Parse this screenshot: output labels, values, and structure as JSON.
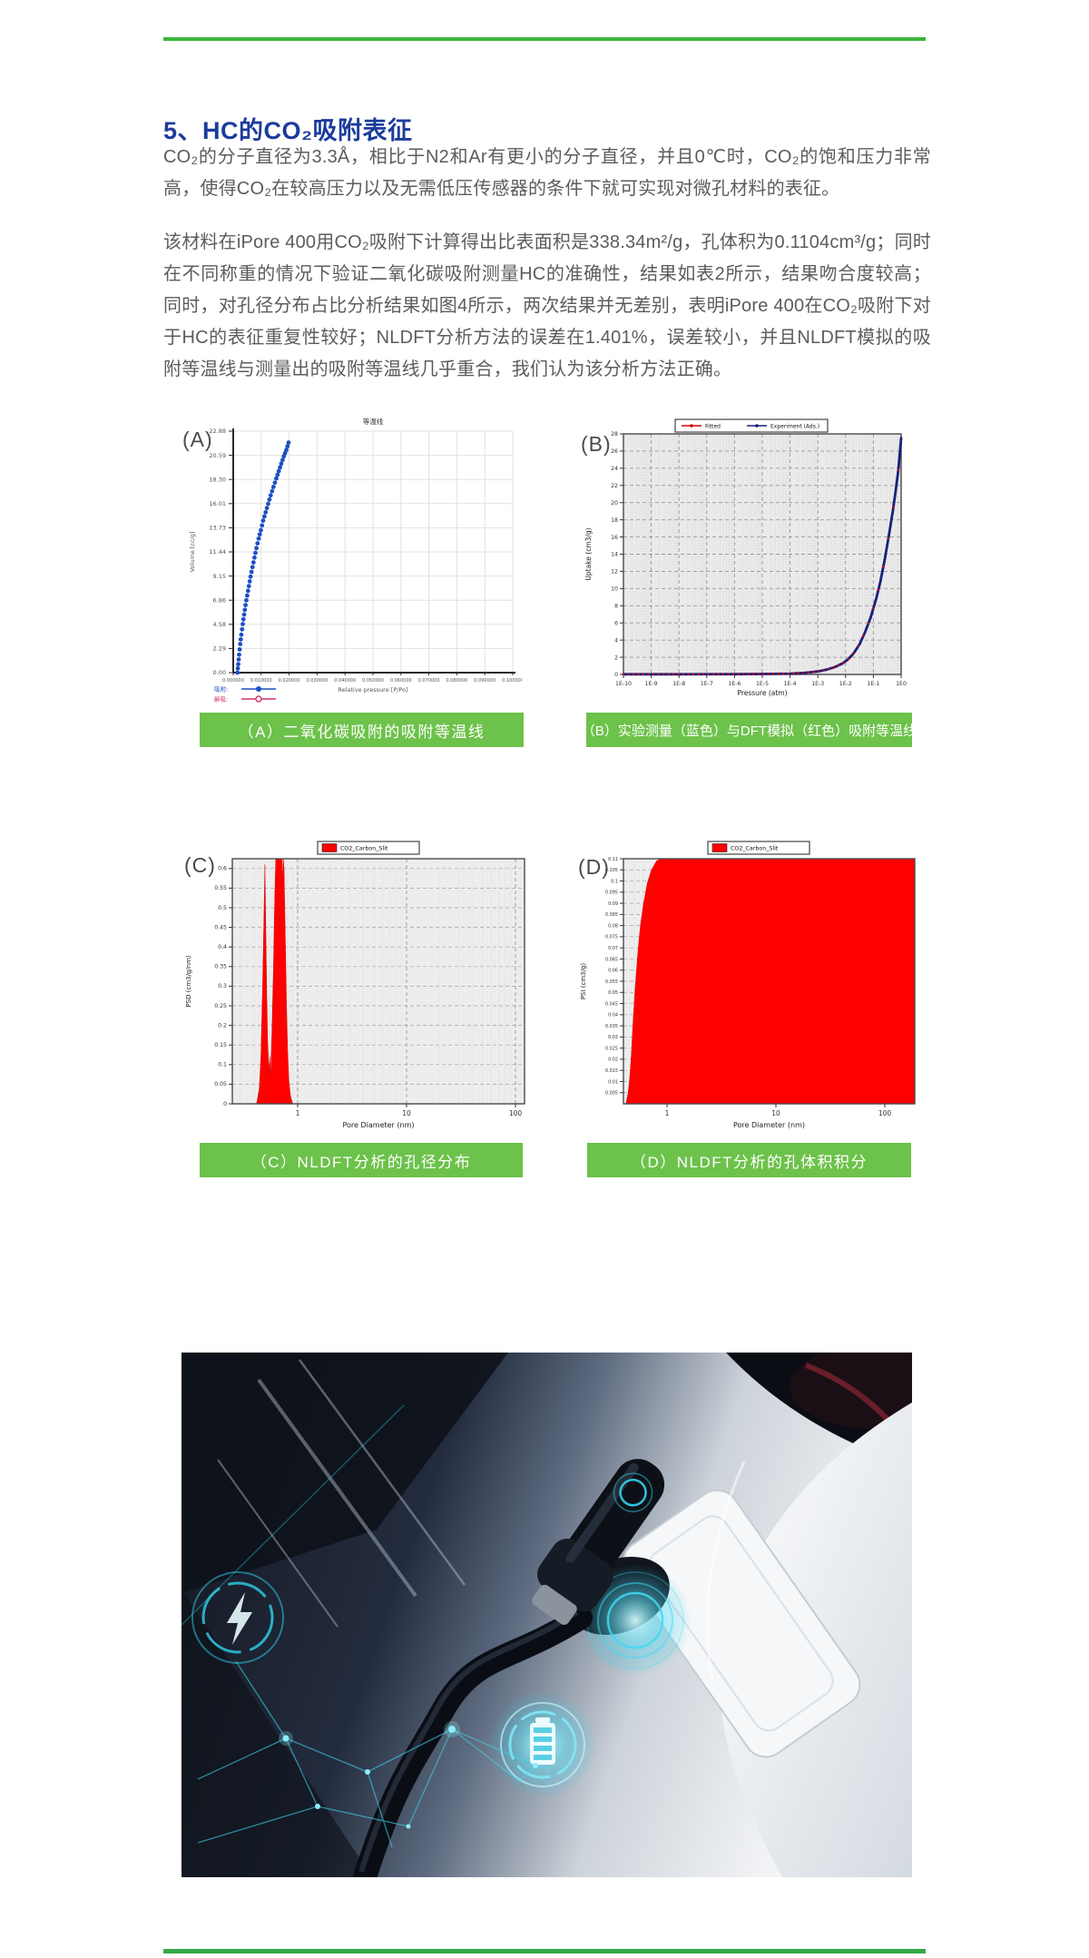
{
  "page": {
    "title_heading": "5、HC的CO₂吸附表征",
    "paragraph_1": "CO₂的分子直径为3.3Å，相比于N2和Ar有更小的分子直径，并且0℃时，CO₂的饱和压力非常高，使得CO₂在较高压力以及无需低压传感器的条件下就可实现对微孔材料的表征。",
    "paragraph_2": "该材料在iPore 400用CO₂吸附下计算得出比表面积是338.34m²/g，孔体积为0.1104cm³/g；同时在不同称重的情况下验证二氧化碳吸附测量HC的准确性，结果如表2所示，结果吻合度较高；同时，对孔径分布占比分析结果如图4所示，两次结果并无差别，表明iPore 400在CO₂吸附下对于HC的表征重复性较好；NLDFT分析方法的误差在1.401%，误差较小，并且NLDFT模拟的吸附等温线与测量出的吸附等温线几乎重合，我们认为该分析方法正确。",
    "colors": {
      "rule_green": "#3cb53c",
      "caption_green": "#6cc24a",
      "heading_blue": "#1c3c9c",
      "body_text": "#5c5c5c"
    }
  },
  "figures": {
    "a_label": "(A)",
    "b_label": "(B)",
    "c_label": "(C)",
    "d_label": "(D)",
    "caption_a": "（A）二氧化碳吸附的吸附等温线",
    "caption_b": "（B）实验测量（蓝色）与DFT模拟（红色）吸附等温线",
    "caption_c": "（C）NLDFT分析的孔径分布",
    "caption_d": "（D）NLDFT分析的孔体积积分"
  },
  "chart_data": [
    {
      "id": "A",
      "type": "scatter",
      "title": "等温线",
      "xlabel": "Relative pressure [P/Po]",
      "ylabel": "Volume [cc/g]",
      "xlim": [
        0,
        0.1
      ],
      "xticks": [
        "0.000000",
        "0.010000",
        "0.020000",
        "0.030000",
        "0.040000",
        "0.050000",
        "0.060000",
        "0.070000",
        "0.080000",
        "0.090000",
        "0.100000"
      ],
      "yticks": [
        "22.88",
        "20.59",
        "18.30",
        "16.01",
        "13.73",
        "11.44",
        "9.15",
        "6.86",
        "4.58",
        "2.29",
        "0.00"
      ],
      "legend": [
        {
          "label": "吸附:",
          "color": "#1d4fc4",
          "marker": "filled-circle"
        },
        {
          "label": "解吸:",
          "color": "#d0346a",
          "marker": "open-circle"
        }
      ],
      "series": [
        {
          "name": "吸附",
          "color": "#1d4fc4",
          "points": [
            [
              0.0015,
              0
            ],
            [
              0.0018,
              0.8
            ],
            [
              0.0021,
              1.7
            ],
            [
              0.0025,
              2.7
            ],
            [
              0.0029,
              3.6
            ],
            [
              0.0034,
              4.6
            ],
            [
              0.0039,
              5.5
            ],
            [
              0.0044,
              6.4
            ],
            [
              0.005,
              7.3
            ],
            [
              0.0056,
              8.2
            ],
            [
              0.0062,
              9.1
            ],
            [
              0.0069,
              10
            ],
            [
              0.0076,
              10.9
            ],
            [
              0.0083,
              11.8
            ],
            [
              0.0091,
              12.7
            ],
            [
              0.0099,
              13.5
            ],
            [
              0.0107,
              14.4
            ],
            [
              0.0116,
              15.2
            ],
            [
              0.0125,
              16
            ],
            [
              0.0134,
              16.8
            ],
            [
              0.0144,
              17.6
            ],
            [
              0.0154,
              18.4
            ],
            [
              0.0163,
              19.1
            ],
            [
              0.0172,
              19.8
            ],
            [
              0.0181,
              20.5
            ],
            [
              0.019,
              21.1
            ],
            [
              0.0198,
              21.8
            ]
          ]
        }
      ]
    },
    {
      "id": "B",
      "type": "line",
      "xscale": "log",
      "xlabel": "Pressure (atm)",
      "ylabel": "Uptake (cm3/g)",
      "xticks": [
        "1E-10",
        "1E-9",
        "1E-8",
        "1E-7",
        "1E-6",
        "1E-5",
        "1E-4",
        "1E-3",
        "1E-2",
        "1E-1",
        "1E0"
      ],
      "ylim": [
        0,
        28
      ],
      "ytick_step": 2,
      "legend": [
        {
          "label": "Fitted",
          "color": "#d40000"
        },
        {
          "label": "Experiment (Ads.)",
          "color": "#15207e"
        }
      ],
      "series": [
        {
          "name": "Experiment (Ads.)",
          "color": "#15207e",
          "points_logx": [
            [
              -10,
              0.02
            ],
            [
              -8,
              0.02
            ],
            [
              -6,
              0.03
            ],
            [
              -5,
              0.05
            ],
            [
              -4,
              0.1
            ],
            [
              -3.5,
              0.18
            ],
            [
              -3,
              0.35
            ],
            [
              -2.7,
              0.55
            ],
            [
              -2.4,
              0.85
            ],
            [
              -2.1,
              1.3
            ],
            [
              -1.9,
              1.8
            ],
            [
              -1.7,
              2.5
            ],
            [
              -1.5,
              3.5
            ],
            [
              -1.3,
              4.9
            ],
            [
              -1.1,
              6.6
            ],
            [
              -0.9,
              8.8
            ],
            [
              -0.75,
              10.8
            ],
            [
              -0.6,
              13.2
            ],
            [
              -0.45,
              16
            ],
            [
              -0.3,
              19
            ],
            [
              -0.2,
              21.3
            ],
            [
              -0.1,
              23.8
            ],
            [
              0,
              27.5
            ]
          ]
        },
        {
          "name": "Fitted",
          "color": "#d40000",
          "style": "dots-on-curve"
        }
      ]
    },
    {
      "id": "C",
      "type": "area",
      "xscale": "log",
      "xlabel": "Pore Diameter (nm)",
      "ylabel": "PSD (cm3/g/nm)",
      "xticks": [
        "1",
        "10",
        "100"
      ],
      "ylim": [
        0,
        0.625
      ],
      "yticks": [
        "0.6",
        "0.55",
        "0.5",
        "0.45",
        "0.4",
        "0.35",
        "0.3",
        "0.25",
        "0.2",
        "0.15",
        "0.1",
        "0.05",
        "0"
      ],
      "legend": [
        {
          "label": "CO2_Carbon_Slit",
          "color": "#fe0000"
        }
      ],
      "series": [
        {
          "name": "CO2_Carbon_Slit",
          "color": "#fe0000",
          "points_nm": [
            [
              0.42,
              0
            ],
            [
              0.445,
              0.04
            ],
            [
              0.46,
              0.12
            ],
            [
              0.475,
              0.28
            ],
            [
              0.49,
              0.47
            ],
            [
              0.5,
              0.61
            ],
            [
              0.51,
              0.44
            ],
            [
              0.52,
              0.28
            ],
            [
              0.53,
              0.16
            ],
            [
              0.545,
              0.08
            ],
            [
              0.555,
              0.12
            ],
            [
              0.565,
              0.07
            ],
            [
              0.58,
              0.18
            ],
            [
              0.6,
              0.35
            ],
            [
              0.615,
              0.52
            ],
            [
              0.63,
              0.625
            ],
            [
              0.72,
              0.625
            ],
            [
              0.73,
              0.56
            ],
            [
              0.74,
              0.625
            ],
            [
              0.75,
              0.6
            ],
            [
              0.77,
              0.42
            ],
            [
              0.79,
              0.25
            ],
            [
              0.81,
              0.13
            ],
            [
              0.83,
              0.06
            ],
            [
              0.86,
              0.02
            ],
            [
              0.9,
              0
            ]
          ]
        }
      ]
    },
    {
      "id": "D",
      "type": "area",
      "xscale": "log",
      "xlabel": "Pore Diameter (nm)",
      "ylabel": "PSI (cm3/g)",
      "xticks": [
        "1",
        "10",
        "100"
      ],
      "ylim": [
        0,
        0.11
      ],
      "ytick_step": 0.005,
      "legend": [
        {
          "label": "CO2_Carbon_Slit",
          "color": "#fe0000"
        }
      ],
      "series": [
        {
          "name": "CO2_Carbon_Slit",
          "color": "#fe0000",
          "plateau": 0.11,
          "points_nm": [
            [
              0.42,
              0
            ],
            [
              0.44,
              0.005
            ],
            [
              0.455,
              0.012
            ],
            [
              0.47,
              0.022
            ],
            [
              0.49,
              0.038
            ],
            [
              0.51,
              0.052
            ],
            [
              0.54,
              0.068
            ],
            [
              0.57,
              0.08
            ],
            [
              0.61,
              0.09
            ],
            [
              0.66,
              0.099
            ],
            [
              0.72,
              0.105
            ],
            [
              0.8,
              0.109
            ],
            [
              0.88,
              0.11
            ]
          ]
        }
      ]
    }
  ]
}
